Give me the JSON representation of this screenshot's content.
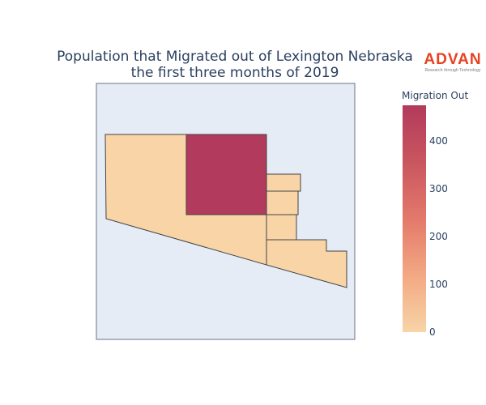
{
  "title_line1": "Population that Migrated out of Lexington Nebraska",
  "title_line2": "the first three months of 2019",
  "logo": {
    "word": "ADVAN",
    "tagline": "Research through Technology",
    "color": "#e8411e"
  },
  "colorbar": {
    "title": "Migration Out",
    "min": 0,
    "max": 475,
    "ticks": [
      0,
      100,
      200,
      300,
      400
    ],
    "colorscale": [
      "#f8d4a6",
      "#f3a883",
      "#e3796b",
      "#c9565f",
      "#b23a5c"
    ]
  },
  "map_data": {
    "type": "choropleth",
    "regions": [
      {
        "name": "west-block",
        "value": 0
      },
      {
        "name": "north-center-block",
        "value": 475
      },
      {
        "name": "south-strip",
        "value": 0
      },
      {
        "name": "east-upper-block",
        "value": 0
      },
      {
        "name": "east-middle-block",
        "value": 0
      },
      {
        "name": "southeast-block",
        "value": 0
      }
    ]
  },
  "colors": {
    "map_background": "#e5ecf6",
    "border": "#444444",
    "text": "#2a3f5f"
  }
}
